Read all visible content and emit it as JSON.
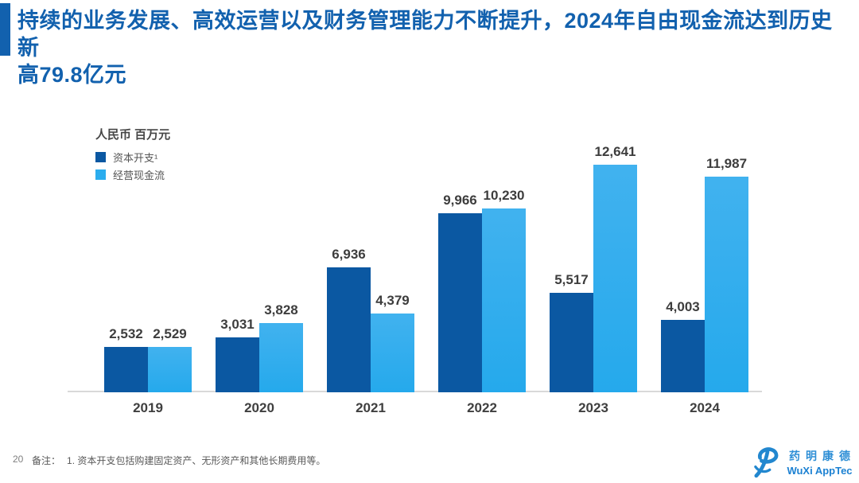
{
  "header": {
    "title_line1": "持续的业务发展、高效运营以及财务管理能力不断提升，2024年自由现金流达到历史新",
    "title_line2": "高79.8亿元"
  },
  "chart": {
    "unit_label": "人民币 百万元",
    "legend": [
      {
        "label": "资本开支¹"
      },
      {
        "label": "经营现金流"
      }
    ]
  },
  "chart_data": {
    "type": "bar",
    "title": "",
    "unit": "人民币 百万元",
    "categories": [
      "2019",
      "2020",
      "2021",
      "2022",
      "2023",
      "2024"
    ],
    "series": [
      {
        "name": "资本开支",
        "color": "#0b58a2",
        "values": [
          2532,
          3031,
          6936,
          9966,
          5517,
          4003
        ]
      },
      {
        "name": "经营现金流",
        "color": "#2badee",
        "values": [
          2529,
          3828,
          4379,
          10230,
          12641,
          11987
        ]
      }
    ],
    "ylim": [
      0,
      13000
    ],
    "grid": false,
    "legend_position": "top-left",
    "data_labels": true
  },
  "footer": {
    "page_number": "20",
    "note_label": "备注：",
    "note_text": "1. 资本开支包括购建固定资产、无形资产和其他长期费用等。",
    "logo": {
      "chinese": "药明康德",
      "english": "WuXi AppTec"
    }
  },
  "colors": {
    "title_blue": "#1261ae",
    "bar_dark": "#0b58a2",
    "bar_light": "#2badee",
    "axis_line": "#d9d9d9",
    "data_label_gray": "#3d3d3d"
  }
}
